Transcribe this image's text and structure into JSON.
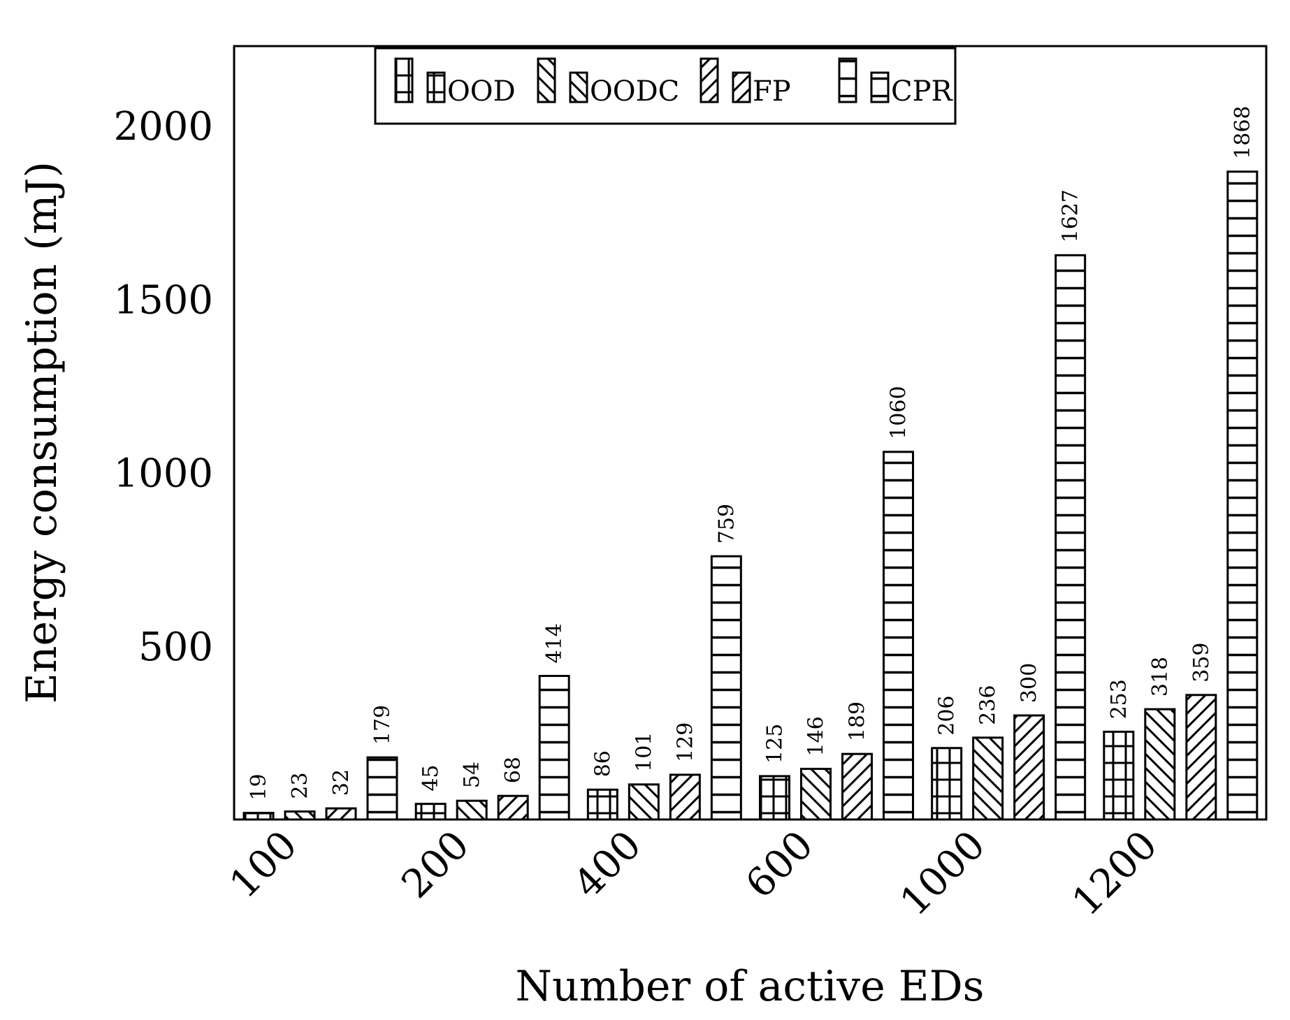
{
  "chart_data": {
    "type": "bar",
    "categories": [
      "100",
      "200",
      "400",
      "600",
      "1000",
      "1200"
    ],
    "series": [
      {
        "name": "OOD",
        "pattern": "grid",
        "values": [
          19,
          45,
          86,
          125,
          206,
          253
        ]
      },
      {
        "name": "OODC",
        "pattern": "back-diagonal",
        "values": [
          23,
          54,
          101,
          146,
          236,
          318
        ]
      },
      {
        "name": "FP",
        "pattern": "diagonal",
        "values": [
          32,
          68,
          129,
          189,
          300,
          359
        ]
      },
      {
        "name": "CPR",
        "pattern": "horizontal",
        "values": [
          179,
          414,
          759,
          1060,
          1627,
          1868
        ]
      }
    ],
    "xlabel": "Number of active EDs",
    "ylabel": "Energy consumption (mJ)",
    "ylim": [
      0,
      2230
    ],
    "yticks": [
      500,
      1000,
      1500,
      2000
    ],
    "legend_position": "top-center",
    "grid": false,
    "colors": {
      "fill": "#ffffff",
      "stroke": "#000000"
    }
  }
}
